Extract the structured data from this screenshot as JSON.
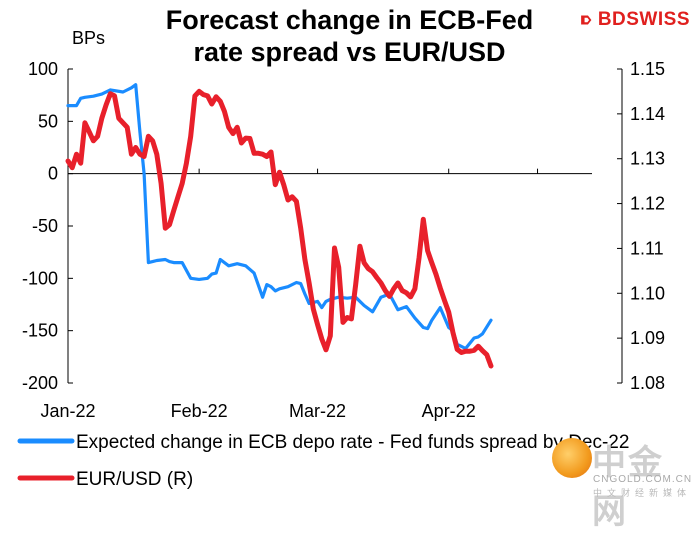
{
  "header": {
    "title_line1": "Forecast change in ECB-Fed",
    "title_line2": "rate spread vs EUR/USD",
    "brand": "BDSWISS"
  },
  "chart_data": {
    "type": "line",
    "title": "Forecast change in ECB-Fed rate spread vs EUR/USD",
    "ylabel": "BPs",
    "ylim": [
      -200,
      100
    ],
    "y2lim": [
      1.08,
      1.15
    ],
    "yticks": [
      100,
      50,
      0,
      -50,
      -100,
      -150,
      -200
    ],
    "y2ticks": [
      "1.15",
      "1.14",
      "1.13",
      "1.12",
      "1.11",
      "1.10",
      "1.09",
      "1.08"
    ],
    "x_tick_labels": [
      "Jan-22",
      "Feb-22",
      "Mar-22",
      "Apr-22"
    ],
    "x_domain": [
      0,
      127
    ],
    "x_tick_positions": [
      0,
      31,
      59,
      90
    ],
    "series": [
      {
        "name": "Expected change in ECB depo rate - Fed funds spread by Dec-22",
        "axis": "left",
        "color": "#1a8cff",
        "x": [
          0,
          2,
          3,
          4,
          6,
          8,
          10,
          13,
          15,
          16,
          17,
          18,
          19,
          20,
          21,
          23,
          24,
          25,
          27,
          29,
          31,
          33,
          34,
          35,
          36,
          38,
          40,
          42,
          44,
          46,
          47,
          48,
          49,
          50,
          52,
          54,
          55,
          56,
          57,
          59,
          60,
          61,
          62,
          64,
          66,
          68,
          70,
          72,
          74,
          76,
          78,
          80,
          82,
          84,
          85,
          86,
          88,
          90,
          91,
          92,
          94,
          96,
          97,
          98,
          100
        ],
        "values": [
          65,
          65,
          72,
          73,
          74,
          76,
          80,
          78,
          82,
          85,
          40,
          0,
          -85,
          -84,
          -83,
          -82,
          -84,
          -85,
          -85,
          -100,
          -101,
          -100,
          -96,
          -95,
          -82,
          -88,
          -86,
          -88,
          -95,
          -118,
          -106,
          -108,
          -112,
          -110,
          -108,
          -104,
          -105,
          -115,
          -124,
          -122,
          -128,
          -122,
          -120,
          -118,
          -119,
          -118,
          -126,
          -132,
          -118,
          -115,
          -130,
          -127,
          -138,
          -147,
          -148,
          -140,
          -128,
          -147,
          -150,
          -163,
          -167,
          -157,
          -156,
          -153,
          -140
        ]
      },
      {
        "name": "EUR/USD (R)",
        "axis": "right",
        "color": "#e8202b",
        "x": [
          0,
          1,
          2,
          3,
          4,
          5,
          6,
          7,
          8,
          9,
          10,
          11,
          12,
          13,
          14,
          15,
          16,
          17,
          18,
          19,
          20,
          21,
          22,
          23,
          24,
          25,
          26,
          27,
          28,
          29,
          30,
          31,
          32,
          33,
          34,
          35,
          36,
          37,
          38,
          39,
          40,
          41,
          42,
          43,
          44,
          45,
          46,
          47,
          48,
          49,
          50,
          51,
          52,
          53,
          54,
          55,
          56,
          57,
          58,
          59,
          60,
          61,
          62,
          63,
          64,
          65,
          66,
          67,
          68,
          69,
          70,
          71,
          72,
          73,
          74,
          75,
          76,
          77,
          78,
          79,
          80,
          81,
          82,
          83,
          84,
          85,
          86,
          87,
          88,
          89,
          90,
          91,
          92,
          93,
          94,
          95,
          96,
          97,
          98,
          99,
          100
        ],
        "values": [
          1.1295,
          1.128,
          1.131,
          1.129,
          1.138,
          1.136,
          1.134,
          1.135,
          1.139,
          1.142,
          1.1445,
          1.144,
          1.139,
          1.138,
          1.137,
          1.131,
          1.1325,
          1.131,
          1.1305,
          1.135,
          1.134,
          1.131,
          1.1245,
          1.1145,
          1.1153,
          1.1185,
          1.1215,
          1.1245,
          1.129,
          1.135,
          1.144,
          1.145,
          1.1443,
          1.144,
          1.1422,
          1.1438,
          1.1428,
          1.1405,
          1.137,
          1.1356,
          1.137,
          1.1335,
          1.1346,
          1.1345,
          1.1312,
          1.1312,
          1.131,
          1.1305,
          1.1315,
          1.1242,
          1.127,
          1.1242,
          1.1208,
          1.1215,
          1.1205,
          1.1145,
          1.1075,
          1.1023,
          1.0965,
          1.093,
          1.0898,
          1.0874,
          1.0905,
          1.1101,
          1.1058,
          1.0935,
          1.0946,
          1.0943,
          1.1018,
          1.1105,
          1.1068,
          1.1055,
          1.1048,
          1.1035,
          1.1023,
          1.1006,
          1.0993,
          1.101,
          1.1023,
          1.1006,
          1.1001,
          1.0992,
          1.101,
          1.108,
          1.1165,
          1.1095,
          1.1068,
          1.1042,
          1.1012,
          1.0984,
          1.0958,
          1.0913,
          1.0875,
          1.0868,
          1.0871,
          1.0871,
          1.0873,
          1.0882,
          1.0872,
          1.0863,
          1.0838
        ]
      }
    ]
  }
}
